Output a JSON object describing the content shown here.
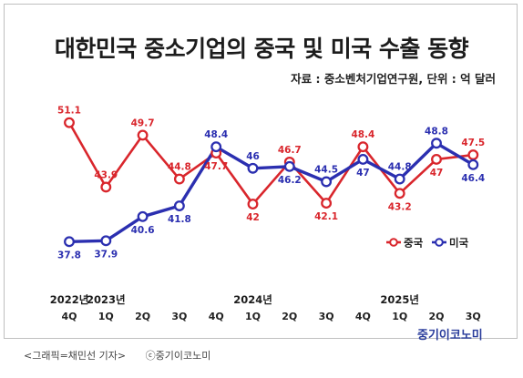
{
  "title": "대한민국 중소기업의 중국 및 미국 수출 동향",
  "source": "자료 : 중소벤처기업연구원, 단위 : 억 달러",
  "caption": {
    "graphic_credit": "<그래픽=채민선 기자>",
    "copyright": "ⓒ중기이코노미"
  },
  "brand": "중기이코노미",
  "colors": {
    "china": "#d9262c",
    "usa": "#2b2fb0",
    "text": "#222222"
  },
  "chart_data": {
    "type": "line",
    "categories": [
      "4Q",
      "1Q",
      "2Q",
      "3Q",
      "4Q",
      "1Q",
      "2Q",
      "3Q",
      "4Q",
      "1Q",
      "2Q",
      "3Q"
    ],
    "year_labels": [
      {
        "label": "2022년",
        "index": 0
      },
      {
        "label": "2023년",
        "index": 1
      },
      {
        "label": "2024년",
        "index": 5
      },
      {
        "label": "2025년",
        "index": 9
      }
    ],
    "series": [
      {
        "name": "중국",
        "color": "#d9262c",
        "values": [
          51.1,
          43.9,
          49.7,
          44.8,
          47.7,
          42,
          46.7,
          42.1,
          48.4,
          43.2,
          47,
          47.5
        ]
      },
      {
        "name": "미국",
        "color": "#2b2fb0",
        "values": [
          37.8,
          37.9,
          40.6,
          41.8,
          48.4,
          46,
          46.2,
          44.5,
          47,
          44.8,
          48.8,
          46.4
        ]
      }
    ],
    "ylim": [
      36,
      53
    ],
    "grid": false,
    "legend_position": "right"
  }
}
